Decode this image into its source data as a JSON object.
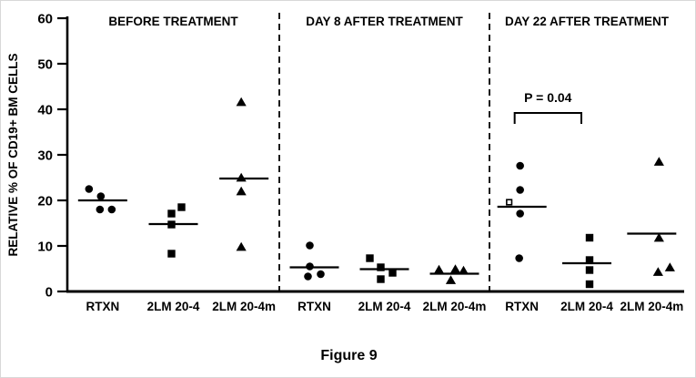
{
  "figure": {
    "caption": "Figure 9"
  },
  "chart_data": {
    "type": "scatter",
    "title": "Figure 9",
    "ylabel": "RELATIVE % OF CD19+ BM CELLS",
    "xlabel": "",
    "ylim": [
      0,
      60
    ],
    "yticks": [
      0,
      10,
      20,
      30,
      40,
      50,
      60
    ],
    "grid": false,
    "legend_position": "none",
    "panels": [
      {
        "title": "BEFORE TREATMENT",
        "groups": [
          {
            "label": "RTXN",
            "marker": "circle",
            "median": 20.0,
            "points": [
              {
                "v": 22.5,
                "dx": -15
              },
              {
                "v": 20.9,
                "dx": -2
              },
              {
                "v": 18.0,
                "dx": -3
              },
              {
                "v": 18.0,
                "dx": 10
              }
            ]
          },
          {
            "label": "2LM 20-4",
            "marker": "square",
            "median": 14.8,
            "points": [
              {
                "v": 18.5,
                "dx": 9
              },
              {
                "v": 17.1,
                "dx": -2
              },
              {
                "v": 14.7,
                "dx": -2
              },
              {
                "v": 8.3,
                "dx": -2
              }
            ]
          },
          {
            "label": "2LM 20-4m",
            "marker": "triangle",
            "median": 24.8,
            "points": [
              {
                "v": 41.6,
                "dx": -3
              },
              {
                "v": 25.0,
                "dx": -3
              },
              {
                "v": 22.0,
                "dx": -3
              },
              {
                "v": 9.8,
                "dx": -3
              }
            ]
          }
        ]
      },
      {
        "title": "DAY 8 AFTER TREATMENT",
        "groups": [
          {
            "label": "RTXN",
            "marker": "circle",
            "median": 5.3,
            "points": [
              {
                "v": 10.1,
                "dx": -5
              },
              {
                "v": 5.5,
                "dx": -5
              },
              {
                "v": 3.3,
                "dx": -7
              },
              {
                "v": 3.8,
                "dx": 7
              }
            ]
          },
          {
            "label": "2LM 20-4",
            "marker": "square",
            "median": 4.9,
            "points": [
              {
                "v": 7.3,
                "dx": -16
              },
              {
                "v": 5.3,
                "dx": -4
              },
              {
                "v": 4.1,
                "dx": 9
              },
              {
                "v": 2.7,
                "dx": -4
              }
            ]
          },
          {
            "label": "2LM 20-4m",
            "marker": "triangle",
            "median": 3.9,
            "points": [
              {
                "v": 4.8,
                "dx": -17
              },
              {
                "v": 4.9,
                "dx": 1
              },
              {
                "v": 4.6,
                "dx": 10
              },
              {
                "v": 2.5,
                "dx": -4
              }
            ]
          }
        ]
      },
      {
        "title": "DAY 22 AFTER TREATMENT",
        "groups": [
          {
            "label": "RTXN",
            "marker": "circle",
            "median": 18.6,
            "points": [
              {
                "v": 27.6,
                "dx": -2
              },
              {
                "v": 22.3,
                "dx": -2
              },
              {
                "v": 19.6,
                "dx": -14,
                "marker": "open-square"
              },
              {
                "v": 17.1,
                "dx": -2
              },
              {
                "v": 7.3,
                "dx": -3
              }
            ]
          },
          {
            "label": "2LM 20-4",
            "marker": "square",
            "median": 6.2,
            "points": [
              {
                "v": 11.8,
                "dx": 3
              },
              {
                "v": 6.9,
                "dx": 3
              },
              {
                "v": 4.7,
                "dx": 3
              },
              {
                "v": 1.6,
                "dx": 3
              }
            ]
          },
          {
            "label": "2LM 20-4m",
            "marker": "triangle",
            "median": 12.7,
            "points": [
              {
                "v": 28.5,
                "dx": 8
              },
              {
                "v": 11.8,
                "dx": 8
              },
              {
                "v": 5.3,
                "dx": 20
              },
              {
                "v": 4.3,
                "dx": 7
              }
            ]
          }
        ]
      }
    ],
    "annotation": {
      "text": "P = 0.04",
      "panel_index": 2,
      "group_from": 0,
      "group_to": 1,
      "bracket_y_value": 39.2
    },
    "colors": {
      "ink": "#000000",
      "background": "#ffffff"
    }
  }
}
